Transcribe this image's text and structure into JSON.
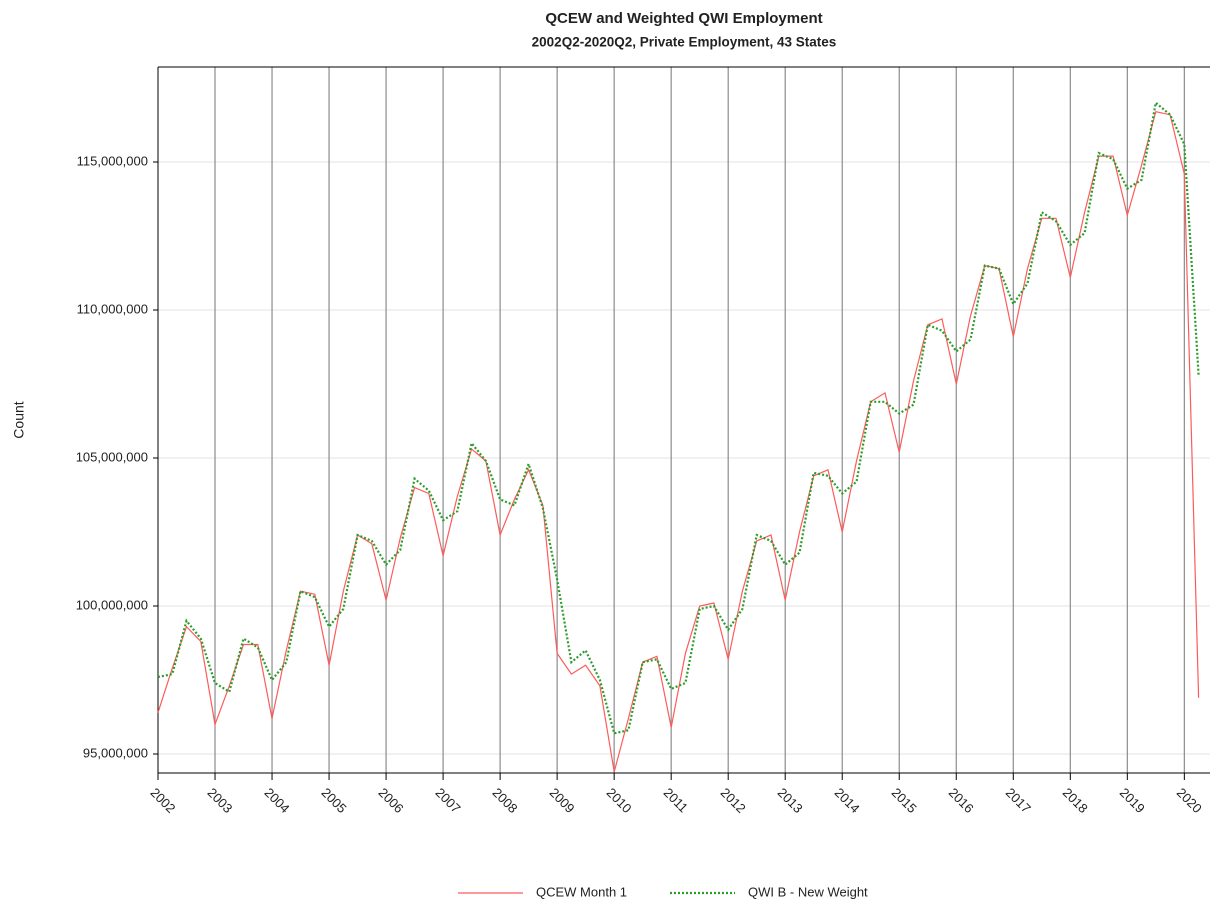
{
  "chart_data": {
    "type": "line",
    "title": "QCEW and Weighted QWI Employment",
    "subtitle": "2002Q2-2020Q2, Private Employment, 43 States",
    "y_label": "Count",
    "x": [
      2002,
      2002.25,
      2002.5,
      2002.75,
      2003,
      2003.25,
      2003.5,
      2003.75,
      2004,
      2004.25,
      2004.5,
      2004.75,
      2005,
      2005.25,
      2005.5,
      2005.75,
      2006,
      2006.25,
      2006.5,
      2006.75,
      2007,
      2007.25,
      2007.5,
      2007.75,
      2008,
      2008.25,
      2008.5,
      2008.75,
      2009,
      2009.25,
      2009.5,
      2009.75,
      2010,
      2010.25,
      2010.5,
      2010.75,
      2011,
      2011.25,
      2011.5,
      2011.75,
      2012,
      2012.25,
      2012.5,
      2012.75,
      2013,
      2013.25,
      2013.5,
      2013.75,
      2014,
      2014.25,
      2014.5,
      2014.75,
      2015,
      2015.25,
      2015.5,
      2015.75,
      2016,
      2016.25,
      2016.5,
      2016.75,
      2017,
      2017.25,
      2017.5,
      2017.75,
      2018,
      2018.25,
      2018.5,
      2018.75,
      2019,
      2019.25,
      2019.5,
      2019.75,
      2020,
      2020.25
    ],
    "series": [
      {
        "name": "QCEW Month 1",
        "color": "#ff5a5a",
        "style": "solid",
        "values": [
          96400000,
          97900000,
          99300000,
          98800000,
          96000000,
          97300000,
          98700000,
          98700000,
          96200000,
          98500000,
          100500000,
          100400000,
          98000000,
          100500000,
          102400000,
          102100000,
          100200000,
          102300000,
          104000000,
          103800000,
          101700000,
          103700000,
          105300000,
          104900000,
          102400000,
          103600000,
          104600000,
          103400000,
          98400000,
          97700000,
          98000000,
          97300000,
          94400000,
          96200000,
          98100000,
          98300000,
          95900000,
          98400000,
          100000000,
          100100000,
          98200000,
          100500000,
          102200000,
          102400000,
          100200000,
          102500000,
          104400000,
          104600000,
          102500000,
          104900000,
          106900000,
          107200000,
          105200000,
          107600000,
          109500000,
          109700000,
          107500000,
          109800000,
          111500000,
          111400000,
          109100000,
          111400000,
          113100000,
          113100000,
          111100000,
          113300000,
          115200000,
          115200000,
          113200000,
          114900000,
          116700000,
          116600000,
          114600000,
          96900000
        ]
      },
      {
        "name": "QWI B - New Weight",
        "color": "#2a9d2a",
        "style": "dotted",
        "values": [
          97600000,
          97700000,
          99500000,
          98900000,
          97400000,
          97100000,
          98900000,
          98600000,
          97500000,
          98100000,
          100500000,
          100300000,
          99300000,
          99900000,
          102400000,
          102200000,
          101400000,
          101900000,
          104300000,
          103900000,
          102900000,
          103200000,
          105500000,
          104900000,
          103600000,
          103400000,
          104800000,
          103300000,
          100900000,
          98100000,
          98500000,
          97500000,
          95700000,
          95800000,
          98100000,
          98200000,
          97200000,
          97400000,
          99900000,
          100000000,
          99200000,
          99900000,
          102400000,
          102200000,
          101400000,
          101800000,
          104500000,
          104400000,
          103800000,
          104200000,
          106900000,
          106900000,
          106500000,
          106800000,
          109500000,
          109300000,
          108600000,
          109000000,
          111500000,
          111400000,
          110200000,
          110900000,
          113300000,
          113000000,
          112200000,
          112600000,
          115300000,
          115100000,
          114100000,
          114400000,
          117000000,
          116600000,
          115600000,
          107800000
        ]
      }
    ],
    "xlim": [
      2002,
      2020.45
    ],
    "xticks": [
      2002,
      2003,
      2004,
      2005,
      2006,
      2007,
      2008,
      2009,
      2010,
      2011,
      2012,
      2013,
      2014,
      2015,
      2016,
      2017,
      2018,
      2019,
      2020
    ],
    "ylim": [
      94358000,
      118210000
    ],
    "yticks": [
      {
        "value": 95000000,
        "label": "95,000,000"
      },
      {
        "value": 100000000,
        "label": "100,000,000"
      },
      {
        "value": 105000000,
        "label": "105,000,000"
      },
      {
        "value": 110000000,
        "label": "110,000,000"
      },
      {
        "value": 115000000,
        "label": "115,000,000"
      }
    ],
    "grid": true,
    "legend": "bottom"
  }
}
